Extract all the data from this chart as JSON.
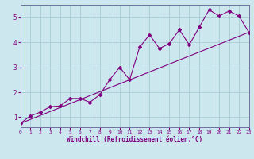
{
  "xlabel": "Windchill (Refroidissement éolien,°C)",
  "bg_color": "#cce8ee",
  "line_color": "#800080",
  "grid_color": "#a8ccd4",
  "series1_x": [
    0,
    1,
    2,
    3,
    4,
    5,
    6,
    7,
    8,
    9,
    10,
    11,
    12,
    13,
    14,
    15,
    16,
    17,
    18,
    19,
    20,
    21,
    22,
    23
  ],
  "series1_y": [
    0.75,
    1.05,
    1.2,
    1.42,
    1.45,
    1.75,
    1.75,
    1.6,
    1.9,
    2.5,
    3.0,
    2.5,
    3.8,
    4.3,
    3.75,
    3.95,
    4.5,
    3.9,
    4.6,
    5.3,
    5.05,
    5.25,
    5.05,
    4.4
  ],
  "series2_x": [
    0,
    23
  ],
  "series2_y": [
    0.75,
    4.4
  ],
  "yticks": [
    1,
    2,
    3,
    4,
    5
  ],
  "xticks": [
    0,
    1,
    2,
    3,
    4,
    5,
    6,
    7,
    8,
    9,
    10,
    11,
    12,
    13,
    14,
    15,
    16,
    17,
    18,
    19,
    20,
    21,
    22,
    23
  ],
  "xlim": [
    0,
    23
  ],
  "ylim": [
    0.6,
    5.5
  ],
  "xlabel_fontsize": 5.5,
  "ytick_fontsize": 5.5,
  "xtick_fontsize": 4.5
}
